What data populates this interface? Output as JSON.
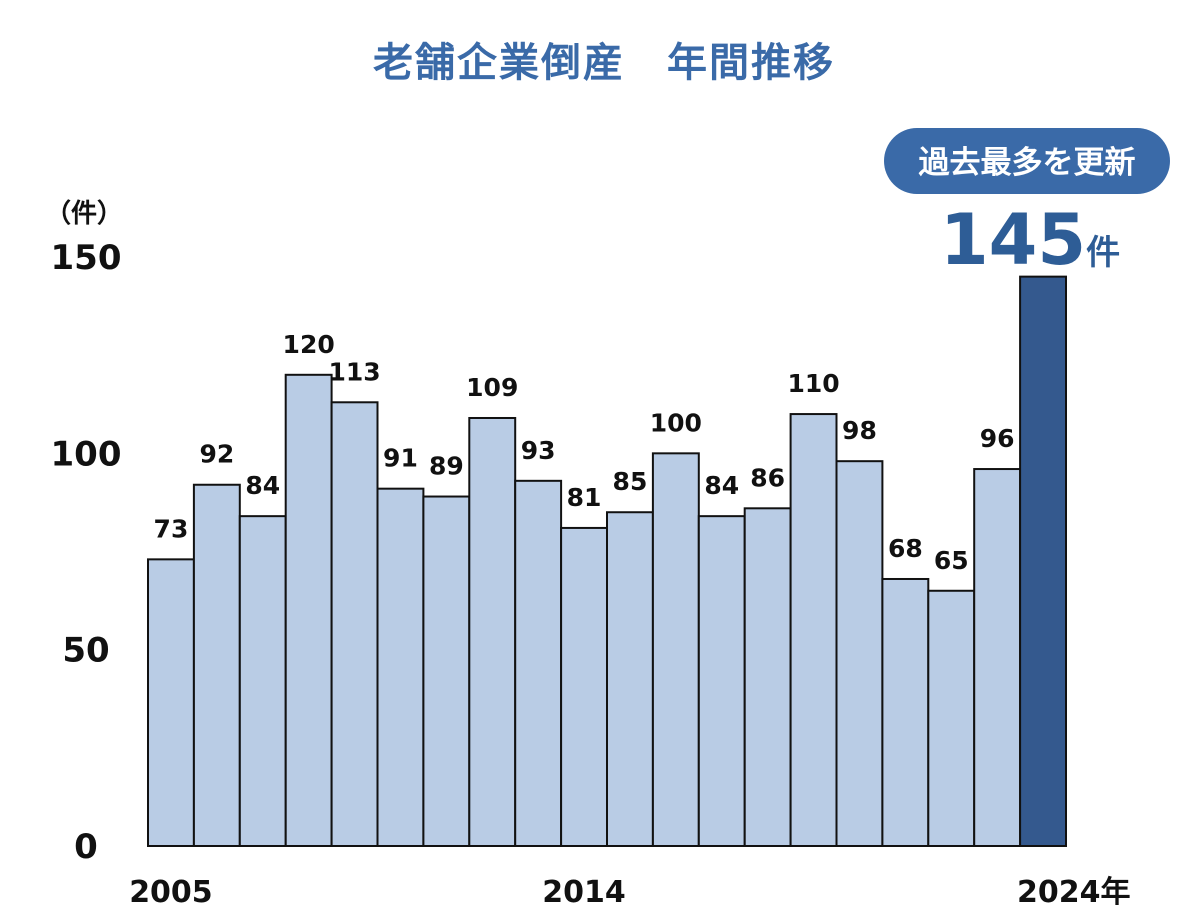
{
  "chart_data": {
    "type": "bar",
    "title": "老舗企業倒産　年間推移",
    "ylabel": "（件）",
    "ylim": [
      0,
      150
    ],
    "yticks": [
      "0",
      "50",
      "100",
      "150"
    ],
    "categories": [
      "2005",
      "2006",
      "2007",
      "2008",
      "2009",
      "2010",
      "2011",
      "2012",
      "2013",
      "2014",
      "2015",
      "2016",
      "2017",
      "2018",
      "2019",
      "2020",
      "2021",
      "2022",
      "2023",
      "2024"
    ],
    "x_tick_labels": [
      {
        "category": "2005",
        "text": "2005"
      },
      {
        "category": "2014",
        "text": "2014"
      },
      {
        "category": "2024",
        "text": "2024年"
      }
    ],
    "values": [
      73,
      92,
      84,
      120,
      113,
      91,
      89,
      109,
      93,
      81,
      85,
      100,
      84,
      86,
      110,
      98,
      68,
      65,
      96,
      145
    ],
    "highlight_index": 19,
    "colors": {
      "bar": "#b9cce5",
      "highlight": "#34598e",
      "title": "#3a6aa8",
      "badge": "#3a6aa8"
    },
    "annotation": {
      "badge": "過去最多を更新",
      "value": "145",
      "unit": "件"
    },
    "grid": false,
    "legend": "none"
  }
}
